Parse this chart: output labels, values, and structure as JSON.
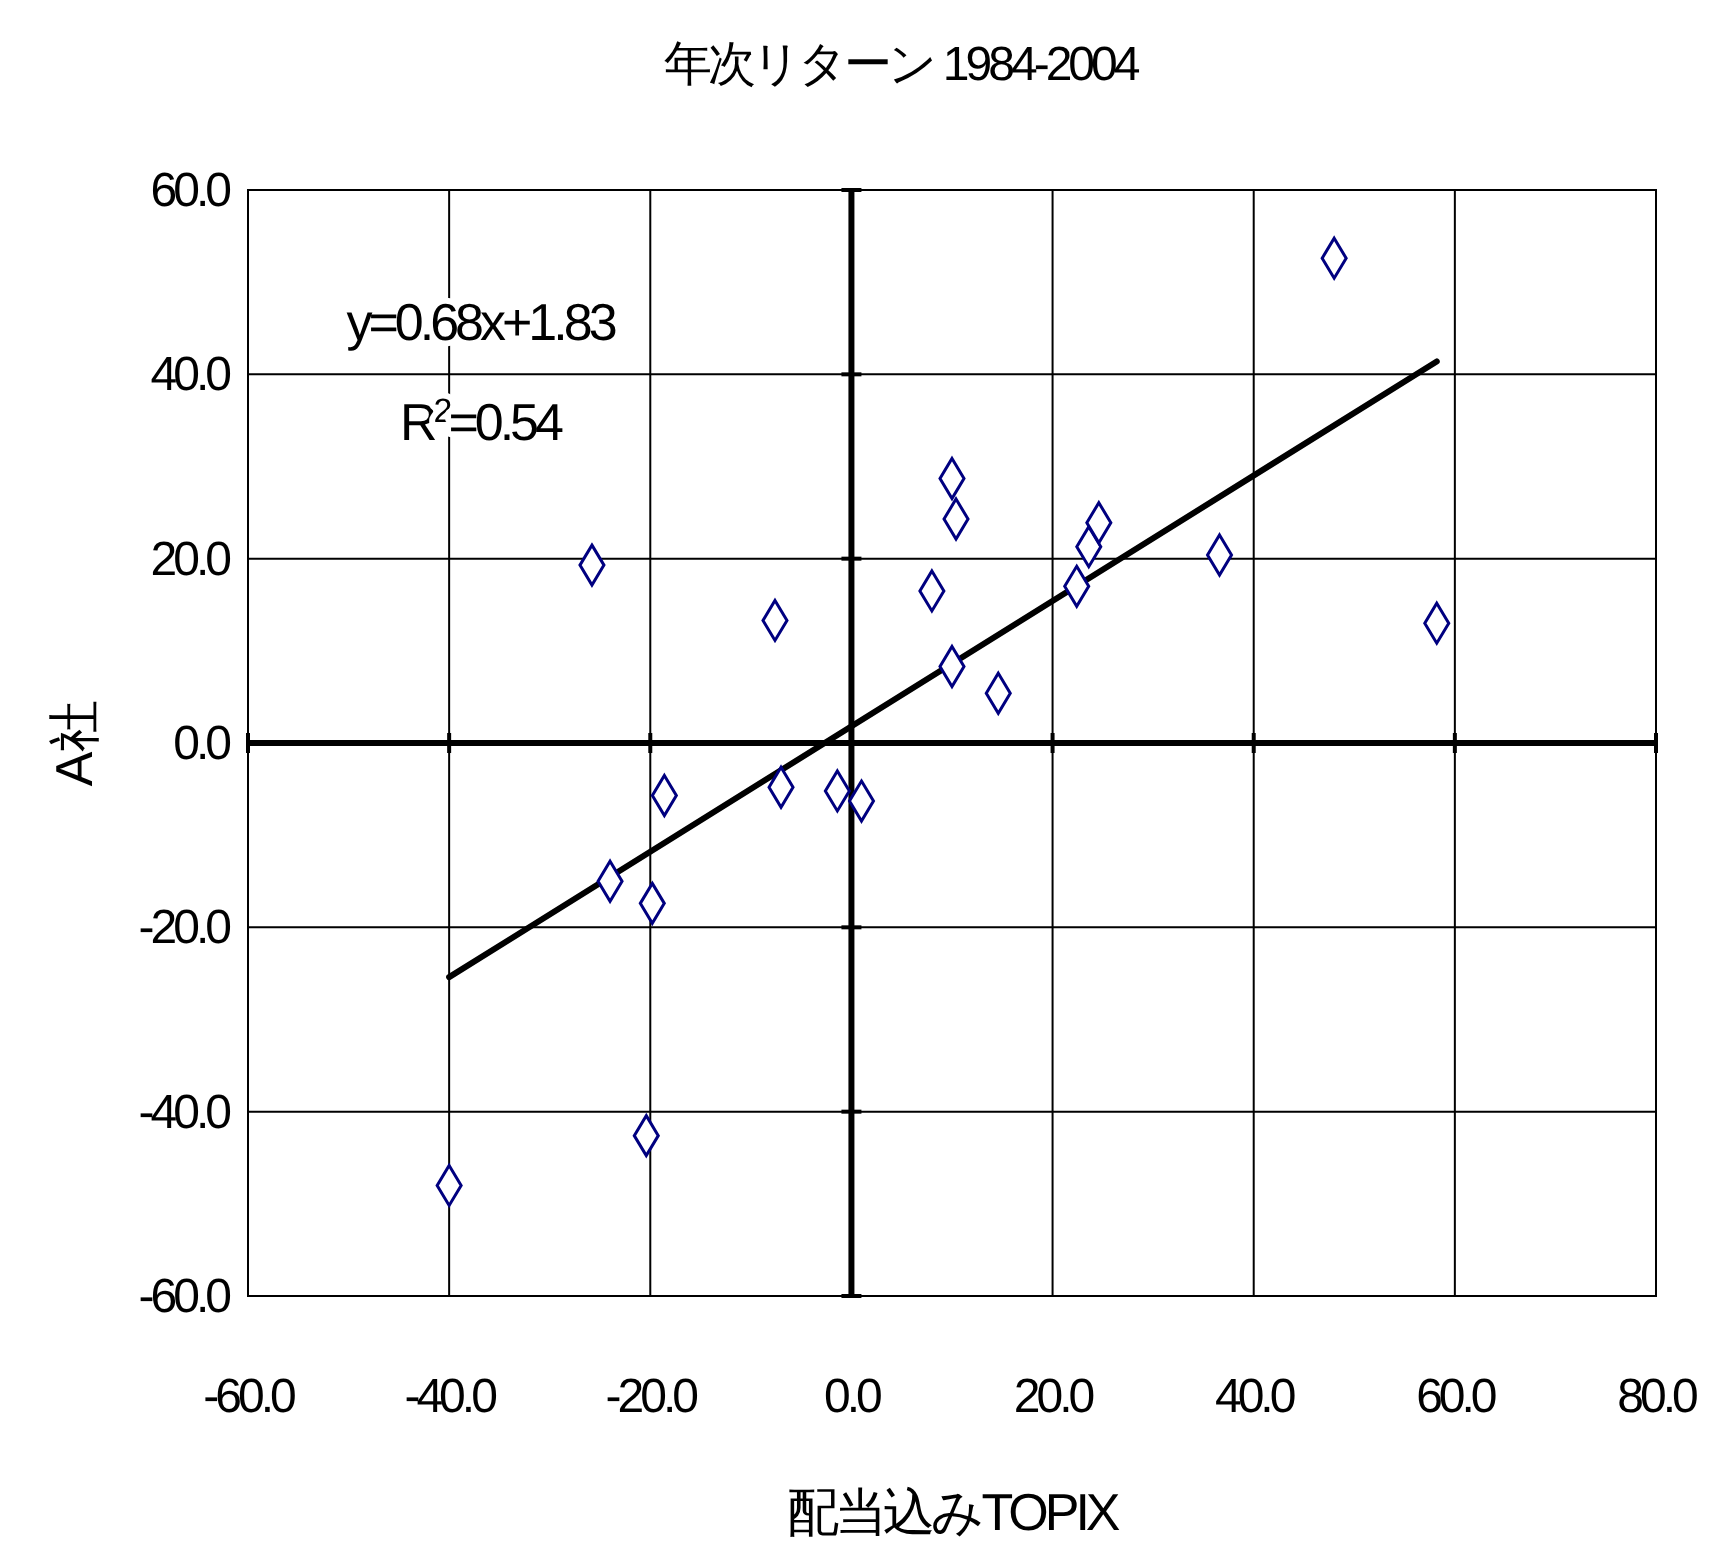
{
  "chart_data": {
    "type": "scatter",
    "title": "年次リターン 1984-2004",
    "xlabel": "配当込みTOPIX",
    "ylabel": "A社",
    "annotations": [
      "y=0.68x+1.83",
      "R$^{2}$=0.54"
    ],
    "xlim": [
      -60,
      80
    ],
    "ylim": [
      -60,
      60
    ],
    "xticks": [
      {
        "value": -60,
        "label": "-60.0"
      },
      {
        "value": -40,
        "label": "-40.0"
      },
      {
        "value": -20,
        "label": "-20.0"
      },
      {
        "value": 0,
        "label": "0.0"
      },
      {
        "value": 20,
        "label": "20.0"
      },
      {
        "value": 40,
        "label": "40.0"
      },
      {
        "value": 60,
        "label": "60.0"
      },
      {
        "value": 80,
        "label": "80.0"
      }
    ],
    "yticks": [
      {
        "value": -60,
        "label": "-60.0"
      },
      {
        "value": -40,
        "label": "-40.0"
      },
      {
        "value": -20,
        "label": "-20.0"
      },
      {
        "value": 0,
        "label": "0.0"
      },
      {
        "value": 20,
        "label": "20.0"
      },
      {
        "value": 40,
        "label": "40.0"
      },
      {
        "value": 60,
        "label": "60.0"
      }
    ],
    "grid": true,
    "series": [
      {
        "type": "scatter",
        "marker": "diamond",
        "color": "#000080",
        "x": [
          -40,
          -25.8,
          -24,
          -19.8,
          -20.4,
          -18.6,
          -7.6,
          -7,
          -1.4,
          1,
          8,
          10,
          10.4,
          10,
          14.6,
          22.4,
          23.6,
          24.6,
          36.6,
          48,
          58.2
        ],
        "values": [
          -48,
          19.3,
          -15,
          -17.4,
          -42.6,
          -5.7,
          13.3,
          -4.8,
          -5.2,
          -6.3,
          16.5,
          28.7,
          24.3,
          8.3,
          5.4,
          17,
          21.3,
          23.9,
          20.4,
          52.6,
          13
        ]
      },
      {
        "type": "line",
        "marker": "none",
        "color": "#000000",
        "x": [
          -40,
          58.2
        ],
        "values": [
          -25.4,
          41.4
        ]
      }
    ]
  }
}
